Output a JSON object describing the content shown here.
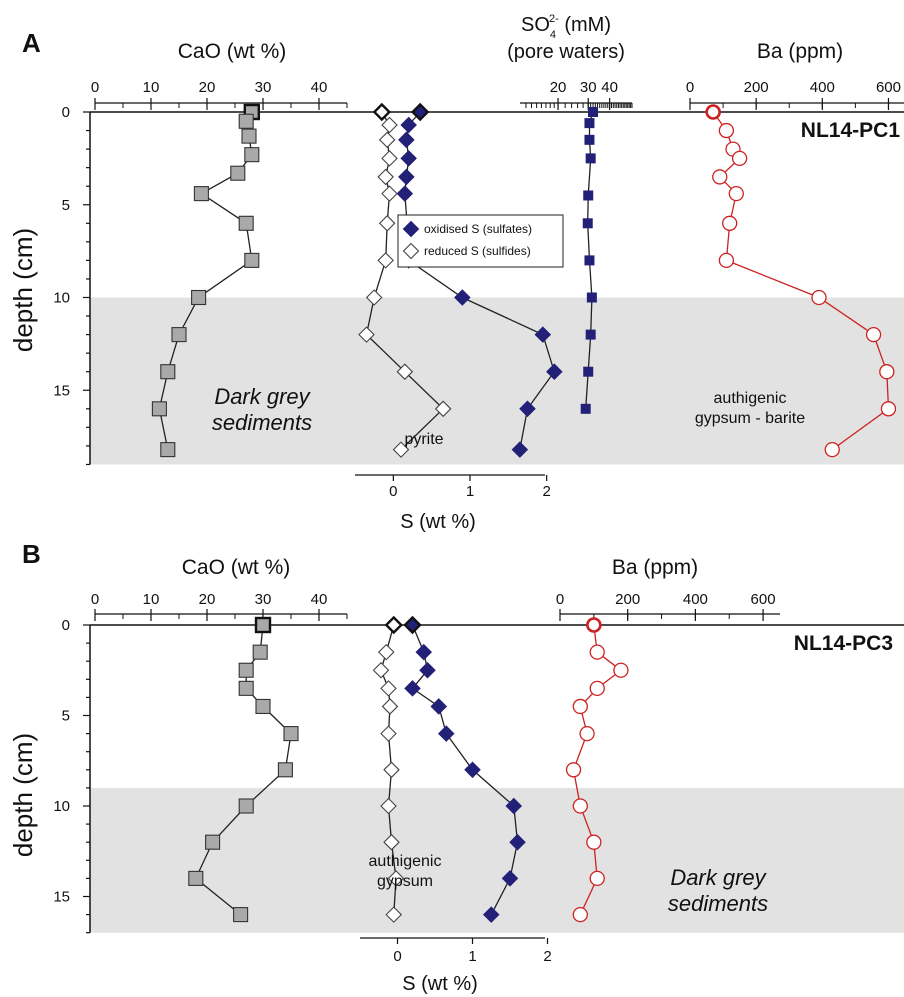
{
  "chart_data": [
    {
      "panel": "A",
      "type": "scatter",
      "core_label": "NL14-PC1",
      "y_axis": {
        "label": "depth (cm)",
        "ticks": [
          0,
          5,
          10,
          15
        ],
        "range": [
          0,
          19
        ]
      },
      "shaded_depth_range": [
        10,
        19
      ],
      "annotations": [
        {
          "id": "dark",
          "lines": [
            "Dark grey",
            "sediments"
          ]
        },
        {
          "id": "pyrite",
          "lines": [
            "pyrite"
          ]
        },
        {
          "id": "gypsum-barite",
          "lines": [
            "authigenic",
            "gypsum - barite"
          ]
        }
      ],
      "legend": {
        "placement": "center",
        "entries": [
          {
            "label": "oxidised S (sulfates)",
            "series": "oxidised_S"
          },
          {
            "label": "reduced S (sulfides)",
            "series": "reduced_S"
          }
        ]
      },
      "axes": {
        "cao": {
          "label": "CaO (wt %)",
          "ticks": [
            0,
            10,
            20,
            30,
            40
          ],
          "tick_labels": [
            "0",
            "10",
            "20",
            "30",
            "40"
          ],
          "range": [
            0,
            45
          ],
          "scale": "linear"
        },
        "s": {
          "label": "S (wt %)",
          "ticks": [
            0,
            1,
            2
          ],
          "tick_labels": [
            "0",
            "1",
            "2"
          ],
          "range": [
            -0.5,
            2.5
          ],
          "scale": "linear"
        },
        "so4": {
          "label_main": "SO",
          "label_sub": "4",
          "label_sup": "2-",
          "label_rest": " (mM)",
          "label_line2": "(pore waters)",
          "ticks": [
            20,
            30,
            40
          ],
          "tick_labels": [
            "20",
            "30",
            "40"
          ],
          "range": [
            12,
            54
          ],
          "scale": "log"
        },
        "ba": {
          "label": "Ba (ppm)",
          "ticks": [
            0,
            200,
            400,
            600
          ],
          "tick_labels": [
            "0",
            "200",
            "400",
            "600"
          ],
          "range": [
            0,
            650
          ],
          "scale": "linear"
        }
      },
      "series": [
        {
          "name": "CaO",
          "axis": "cao",
          "marker": "square",
          "color": "#a9a9a9",
          "depth": [
            0,
            0.5,
            1.3,
            2.3,
            3.3,
            4.4,
            6,
            8,
            10,
            12,
            14,
            16,
            18.2
          ],
          "values": [
            28,
            27,
            27.5,
            28,
            25.5,
            19,
            27,
            28,
            18.5,
            15,
            13,
            11.5,
            13
          ]
        },
        {
          "name": "oxidised S (sulfates)",
          "axis": "s",
          "marker": "diamond",
          "color": "#232078",
          "depth": [
            0,
            0.7,
            1.5,
            2.5,
            3.5,
            4.4,
            6,
            8,
            10,
            12,
            14,
            16,
            18.2
          ],
          "values": [
            0.35,
            0.2,
            0.17,
            0.2,
            0.17,
            0.15,
            0.18,
            0.2,
            0.9,
            1.95,
            2.1,
            1.75,
            1.65
          ]
        },
        {
          "name": "reduced S (sulfides)",
          "axis": "s",
          "marker": "diamond",
          "color": "#ffffff",
          "depth": [
            0,
            0.7,
            1.5,
            2.5,
            3.5,
            4.4,
            6,
            8,
            10,
            12,
            14,
            16,
            18.2
          ],
          "values": [
            -0.15,
            -0.05,
            -0.08,
            -0.05,
            -0.1,
            -0.05,
            -0.08,
            -0.1,
            -0.25,
            -0.35,
            0.15,
            0.65,
            0.1
          ]
        },
        {
          "name": "SO4 pore waters",
          "axis": "so4",
          "marker": "square-small",
          "color": "#232078",
          "depth": [
            0,
            0.6,
            1.5,
            2.5,
            4.5,
            6,
            8,
            10,
            12,
            14,
            16
          ],
          "values": [
            32,
            30.5,
            30.5,
            31,
            30,
            29.8,
            30.5,
            31.5,
            31,
            30,
            29
          ]
        },
        {
          "name": "Ba",
          "axis": "ba",
          "marker": "circle",
          "color": "#cc2222",
          "depth": [
            0,
            1,
            2,
            2.5,
            3.5,
            4.4,
            6,
            8,
            10,
            12,
            14,
            16,
            18.2
          ],
          "values": [
            70,
            110,
            130,
            150,
            90,
            140,
            120,
            110,
            390,
            555,
            595,
            600,
            430
          ]
        }
      ]
    },
    {
      "panel": "B",
      "type": "scatter",
      "core_label": "NL14-PC3",
      "y_axis": {
        "label": "depth (cm)",
        "ticks": [
          0,
          5,
          10,
          15
        ],
        "range": [
          0,
          17
        ]
      },
      "shaded_depth_range": [
        9,
        17
      ],
      "annotations": [
        {
          "id": "gypsum",
          "lines": [
            "authigenic",
            "gypsum"
          ]
        },
        {
          "id": "dark",
          "lines": [
            "Dark grey",
            "sediments"
          ]
        }
      ],
      "axes": {
        "cao": {
          "label": "CaO (wt %)",
          "ticks": [
            0,
            10,
            20,
            30,
            40
          ],
          "tick_labels": [
            "0",
            "10",
            "20",
            "30",
            "40"
          ],
          "range": [
            0,
            45
          ],
          "scale": "linear"
        },
        "s": {
          "label": "S (wt %)",
          "ticks": [
            0,
            1,
            2
          ],
          "tick_labels": [
            "0",
            "1",
            "2"
          ],
          "range": [
            -0.5,
            2.5
          ],
          "scale": "linear"
        },
        "ba": {
          "label": "Ba (ppm)",
          "ticks": [
            0,
            200,
            400,
            600
          ],
          "tick_labels": [
            "0",
            "200",
            "400",
            "600"
          ],
          "range": [
            0,
            650
          ],
          "scale": "linear"
        }
      },
      "series": [
        {
          "name": "CaO",
          "axis": "cao",
          "marker": "square",
          "color": "#a9a9a9",
          "depth": [
            0,
            1.5,
            2.5,
            3.5,
            4.5,
            6,
            8,
            10,
            12,
            14,
            16
          ],
          "values": [
            30,
            29.5,
            27,
            27,
            30,
            35,
            34,
            27,
            21,
            18,
            26
          ]
        },
        {
          "name": "oxidised S (sulfates)",
          "axis": "s",
          "marker": "diamond",
          "color": "#232078",
          "depth": [
            0,
            1.5,
            2.5,
            3.5,
            4.5,
            6,
            8,
            10,
            12,
            14,
            16
          ],
          "values": [
            0.2,
            0.35,
            0.4,
            0.2,
            0.55,
            0.65,
            1,
            1.55,
            1.6,
            1.5,
            1.25
          ]
        },
        {
          "name": "reduced S (sulfides)",
          "axis": "s",
          "marker": "diamond",
          "color": "#ffffff",
          "depth": [
            0,
            1.5,
            2.5,
            3.5,
            4.5,
            6,
            8,
            10,
            12,
            14,
            16
          ],
          "values": [
            -0.05,
            -0.15,
            -0.22,
            -0.12,
            -0.1,
            -0.12,
            -0.08,
            -0.12,
            -0.08,
            -0.02,
            -0.05
          ]
        },
        {
          "name": "Ba",
          "axis": "ba",
          "marker": "circle",
          "color": "#cc2222",
          "depth": [
            0,
            1.5,
            2.5,
            3.5,
            4.5,
            6,
            8,
            10,
            12,
            14,
            16
          ],
          "values": [
            100,
            110,
            180,
            110,
            60,
            80,
            40,
            60,
            100,
            110,
            60
          ]
        }
      ]
    }
  ]
}
